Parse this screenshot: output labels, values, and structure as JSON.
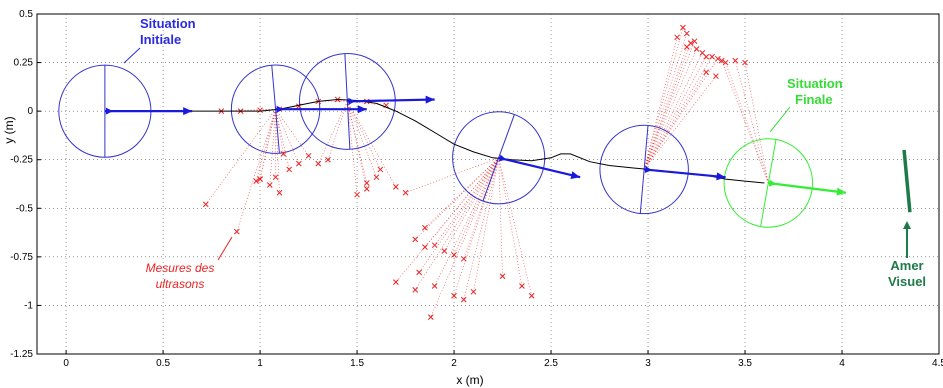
{
  "chart_data": {
    "type": "scatter",
    "xlabel": "x (m)",
    "ylabel": "y (m)",
    "xlim": [
      -0.15,
      4.5
    ],
    "ylim": [
      -1.25,
      0.5
    ],
    "grid": true,
    "xticks": [
      "0",
      "0.5",
      "1",
      "1.5",
      "2",
      "2.5",
      "3",
      "3.5",
      "4",
      "4.5"
    ],
    "xtick_values": [
      0,
      0.5,
      1,
      1.5,
      2,
      2.5,
      3,
      3.5,
      4,
      4.5
    ],
    "yticks": [
      "0.5",
      "0.25",
      "0",
      "-0.25",
      "-0.5",
      "-0.75",
      "-1",
      "-1.25"
    ],
    "ytick_values": [
      0.5,
      0.25,
      0,
      -0.25,
      -0.5,
      -0.75,
      -1,
      -1.25
    ],
    "colors": {
      "robot": "#3333cc",
      "arrow": "#1a1add",
      "final": "#33ee33",
      "measures": "#ee2222",
      "landmark": "#1f7a4a",
      "trajectory": "#000000"
    },
    "annotations": {
      "initial": [
        "Situation",
        "Initiale"
      ],
      "final": [
        "Situation",
        "Finale"
      ],
      "ultrasons": [
        "Mesures des",
        "ultrasons"
      ],
      "landmark": [
        "Amer",
        "Visuel"
      ]
    },
    "trajectory": [
      [
        0.2,
        0
      ],
      [
        0.5,
        0
      ],
      [
        0.8,
        0
      ],
      [
        1.0,
        0
      ],
      [
        1.1,
        0.01
      ],
      [
        1.2,
        0.03
      ],
      [
        1.3,
        0.05
      ],
      [
        1.4,
        0.06
      ],
      [
        1.5,
        0.055
      ],
      [
        1.6,
        0.04
      ],
      [
        1.7,
        0.0
      ],
      [
        1.8,
        -0.05
      ],
      [
        1.9,
        -0.11
      ],
      [
        2.0,
        -0.17
      ],
      [
        2.1,
        -0.21
      ],
      [
        2.2,
        -0.24
      ],
      [
        2.3,
        -0.25
      ],
      [
        2.4,
        -0.255
      ],
      [
        2.5,
        -0.24
      ],
      [
        2.55,
        -0.22
      ],
      [
        2.6,
        -0.22
      ],
      [
        2.7,
        -0.26
      ],
      [
        2.8,
        -0.28
      ],
      [
        2.9,
        -0.29
      ],
      [
        3.0,
        -0.3
      ],
      [
        3.1,
        -0.31
      ],
      [
        3.2,
        -0.32
      ],
      [
        3.3,
        -0.33
      ],
      [
        3.4,
        -0.35
      ],
      [
        3.5,
        -0.36
      ],
      [
        3.6,
        -0.37
      ]
    ],
    "robots": [
      {
        "x": 0.2,
        "y": 0,
        "r": 0.25,
        "heading_deg": 0,
        "arrow_to": [
          0.65,
          0
        ],
        "final": false
      },
      {
        "x": 1.08,
        "y": 0.01,
        "r": 0.24,
        "heading_deg": 5,
        "arrow_to": [
          1.55,
          0.01
        ],
        "final": false
      },
      {
        "x": 1.45,
        "y": 0.05,
        "r": 0.26,
        "heading_deg": 3,
        "arrow_to": [
          1.9,
          0.06
        ],
        "final": false
      },
      {
        "x": 2.23,
        "y": -0.24,
        "r": 0.25,
        "heading_deg": -20,
        "arrow_to": [
          2.65,
          -0.34
        ],
        "final": false
      },
      {
        "x": 2.98,
        "y": -0.3,
        "r": 0.24,
        "heading_deg": -5,
        "arrow_to": [
          3.4,
          -0.34
        ],
        "final": false
      },
      {
        "x": 3.62,
        "y": -0.37,
        "r": 0.24,
        "heading_deg": -10,
        "arrow_to": [
          4.02,
          -0.42
        ],
        "final": true
      }
    ],
    "ultrasound_points": [
      [
        0.88,
        -0.62
      ],
      [
        0.72,
        -0.48
      ],
      [
        1.0,
        -0.35
      ],
      [
        1.05,
        -0.38
      ],
      [
        1.1,
        -0.42
      ],
      [
        1.15,
        -0.3
      ],
      [
        1.2,
        -0.27
      ],
      [
        1.25,
        -0.23
      ],
      [
        1.3,
        -0.27
      ],
      [
        1.35,
        -0.25
      ],
      [
        1.12,
        -0.22
      ],
      [
        1.08,
        -0.34
      ],
      [
        1.5,
        -0.43
      ],
      [
        1.55,
        -0.37
      ],
      [
        1.6,
        -0.34
      ],
      [
        1.7,
        -0.39
      ],
      [
        1.62,
        -0.3
      ],
      [
        1.3,
        0.05
      ],
      [
        1.4,
        0.06
      ],
      [
        1.0,
        -0.35
      ],
      [
        0.98,
        -0.36
      ],
      [
        1.75,
        -0.42
      ],
      [
        1.55,
        -0.4
      ],
      [
        1.8,
        -0.66
      ],
      [
        1.85,
        -0.7
      ],
      [
        1.9,
        -0.69
      ],
      [
        1.95,
        -0.72
      ],
      [
        2.0,
        -0.74
      ],
      [
        2.05,
        -0.76
      ],
      [
        1.82,
        -0.83
      ],
      [
        1.9,
        -0.9
      ],
      [
        2.0,
        -0.95
      ],
      [
        2.05,
        -0.97
      ],
      [
        2.1,
        -0.93
      ],
      [
        1.8,
        -0.92
      ],
      [
        2.25,
        -0.85
      ],
      [
        2.35,
        -0.9
      ],
      [
        2.4,
        -0.95
      ],
      [
        1.88,
        -1.06
      ],
      [
        1.7,
        -0.88
      ],
      [
        1.85,
        -0.6
      ],
      [
        3.18,
        0.43
      ],
      [
        3.2,
        0.4
      ],
      [
        3.22,
        0.35
      ],
      [
        3.25,
        0.32
      ],
      [
        3.28,
        0.3
      ],
      [
        3.3,
        0.28
      ],
      [
        3.33,
        0.28
      ],
      [
        3.36,
        0.27
      ],
      [
        3.38,
        0.26
      ],
      [
        3.4,
        0.25
      ],
      [
        3.45,
        0.26
      ],
      [
        3.5,
        0.25
      ],
      [
        3.3,
        0.2
      ],
      [
        3.35,
        0.18
      ],
      [
        3.24,
        0.36
      ],
      [
        3.15,
        0.38
      ],
      [
        3.2,
        0.33
      ],
      [
        0.8,
        0
      ],
      [
        0.9,
        0
      ],
      [
        1.0,
        0.005
      ],
      [
        1.1,
        0.01
      ],
      [
        1.2,
        0.025
      ],
      [
        1.55,
        0.05
      ],
      [
        1.65,
        0.03
      ]
    ]
  }
}
